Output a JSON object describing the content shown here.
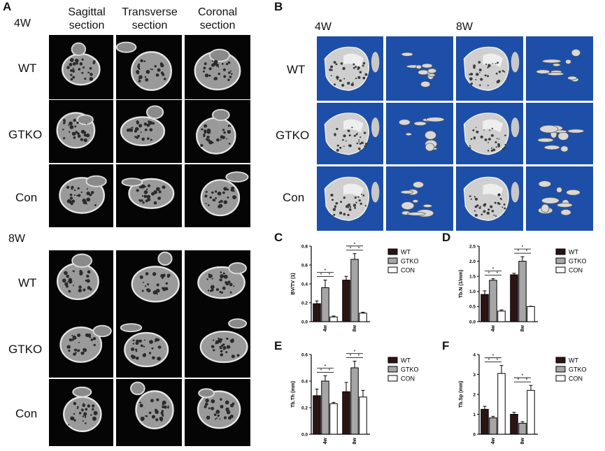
{
  "panel_a": {
    "letter": "A",
    "columns": [
      {
        "line1": "Sagittal",
        "line2": "section"
      },
      {
        "line1": "Transverse",
        "line2": "section"
      },
      {
        "line1": "Coronal",
        "line2": "section"
      }
    ],
    "groups": [
      {
        "label": "4W",
        "rows": [
          "WT",
          "GTKO",
          "Con"
        ]
      },
      {
        "label": "8W",
        "rows": [
          "WT",
          "GTKO",
          "Con"
        ]
      }
    ]
  },
  "panel_b": {
    "letter": "B",
    "timepoints": [
      "4W",
      "8W"
    ],
    "rows": [
      "WT",
      "GTKO",
      "Con"
    ]
  },
  "chart_data": [
    {
      "panel": "C",
      "type": "bar",
      "ylabel": "BV/TV (1)",
      "categories": [
        "4w",
        "8w"
      ],
      "ylim": [
        0,
        0.8
      ],
      "yticks": [
        "0.0",
        "0.2",
        "0.4",
        "0.6",
        "0.8"
      ],
      "series": [
        {
          "name": "WT",
          "values": [
            0.19,
            0.44
          ],
          "errors": [
            0.03,
            0.04
          ]
        },
        {
          "name": "GTKO",
          "values": [
            0.36,
            0.66
          ],
          "errors": [
            0.08,
            0.06
          ]
        },
        {
          "name": "CON",
          "values": [
            0.05,
            0.09
          ],
          "errors": [
            0.01,
            0.01
          ]
        }
      ],
      "significance": "*"
    },
    {
      "panel": "D",
      "type": "bar",
      "ylabel": "Tb.N (1/mm)",
      "categories": [
        "4w",
        "8w"
      ],
      "ylim": [
        0,
        2.5
      ],
      "yticks": [
        "0.0",
        "0.5",
        "1.0",
        "1.5",
        "2.0",
        "2.5"
      ],
      "series": [
        {
          "name": "WT",
          "values": [
            0.9,
            1.55
          ],
          "errors": [
            0.12,
            0.05
          ]
        },
        {
          "name": "GTKO",
          "values": [
            1.37,
            2.0
          ],
          "errors": [
            0.05,
            0.15
          ]
        },
        {
          "name": "CON",
          "values": [
            0.35,
            0.5
          ],
          "errors": [
            0.04,
            0.01
          ]
        }
      ],
      "significance": "*"
    },
    {
      "panel": "E",
      "type": "bar",
      "ylabel": "Tb.Th (mm)",
      "categories": [
        "4w",
        "8w"
      ],
      "ylim": [
        0,
        0.6
      ],
      "yticks": [
        "0.0",
        "0.2",
        "0.4",
        "0.6"
      ],
      "series": [
        {
          "name": "WT",
          "values": [
            0.29,
            0.32
          ],
          "errors": [
            0.05,
            0.07
          ]
        },
        {
          "name": "GTKO",
          "values": [
            0.4,
            0.5
          ],
          "errors": [
            0.04,
            0.05
          ]
        },
        {
          "name": "CON",
          "values": [
            0.23,
            0.28
          ],
          "errors": [
            0.01,
            0.05
          ]
        }
      ],
      "significance": "*"
    },
    {
      "panel": "F",
      "type": "bar",
      "ylabel": "Tb.Sp (mm)",
      "categories": [
        "4w",
        "8w"
      ],
      "ylim": [
        0,
        4
      ],
      "yticks": [
        "0",
        "1",
        "2",
        "3",
        "4"
      ],
      "series": [
        {
          "name": "WT",
          "values": [
            1.25,
            1.0
          ],
          "errors": [
            0.15,
            0.1
          ]
        },
        {
          "name": "GTKO",
          "values": [
            0.82,
            0.55
          ],
          "errors": [
            0.08,
            0.08
          ]
        },
        {
          "name": "CON",
          "values": [
            3.05,
            2.2
          ],
          "errors": [
            0.4,
            0.25
          ]
        }
      ],
      "significance": "*"
    }
  ],
  "colors": {
    "WT": "#2a1414",
    "GTKO": "#a6a6a6",
    "CON": "#ffffff",
    "render_bg": "#1d4fa8",
    "ct_bg": "#050505"
  },
  "series_order": [
    "WT",
    "GTKO",
    "CON"
  ]
}
